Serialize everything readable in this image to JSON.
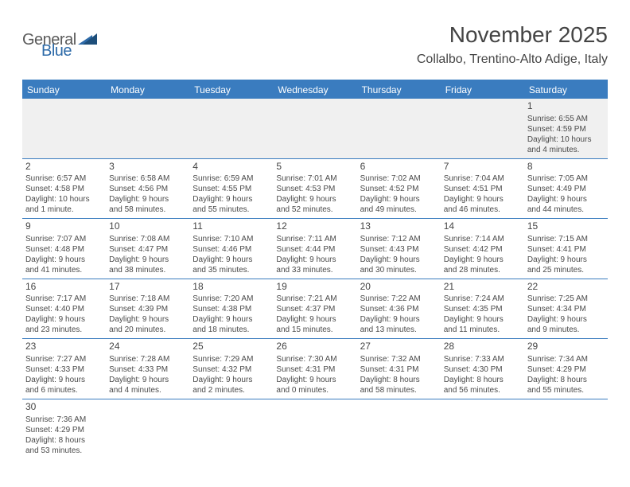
{
  "logo": {
    "general": "General",
    "blue": "Blue"
  },
  "title": "November 2025",
  "location": "Collalbo, Trentino-Alto Adige, Italy",
  "header_bg": "#3a7cbf",
  "weekdays": [
    "Sunday",
    "Monday",
    "Tuesday",
    "Wednesday",
    "Thursday",
    "Friday",
    "Saturday"
  ],
  "weeks": [
    [
      null,
      null,
      null,
      null,
      null,
      null,
      {
        "n": "1",
        "sr": "Sunrise: 6:55 AM",
        "ss": "Sunset: 4:59 PM",
        "d1": "Daylight: 10 hours",
        "d2": "and 4 minutes."
      }
    ],
    [
      {
        "n": "2",
        "sr": "Sunrise: 6:57 AM",
        "ss": "Sunset: 4:58 PM",
        "d1": "Daylight: 10 hours",
        "d2": "and 1 minute."
      },
      {
        "n": "3",
        "sr": "Sunrise: 6:58 AM",
        "ss": "Sunset: 4:56 PM",
        "d1": "Daylight: 9 hours",
        "d2": "and 58 minutes."
      },
      {
        "n": "4",
        "sr": "Sunrise: 6:59 AM",
        "ss": "Sunset: 4:55 PM",
        "d1": "Daylight: 9 hours",
        "d2": "and 55 minutes."
      },
      {
        "n": "5",
        "sr": "Sunrise: 7:01 AM",
        "ss": "Sunset: 4:53 PM",
        "d1": "Daylight: 9 hours",
        "d2": "and 52 minutes."
      },
      {
        "n": "6",
        "sr": "Sunrise: 7:02 AM",
        "ss": "Sunset: 4:52 PM",
        "d1": "Daylight: 9 hours",
        "d2": "and 49 minutes."
      },
      {
        "n": "7",
        "sr": "Sunrise: 7:04 AM",
        "ss": "Sunset: 4:51 PM",
        "d1": "Daylight: 9 hours",
        "d2": "and 46 minutes."
      },
      {
        "n": "8",
        "sr": "Sunrise: 7:05 AM",
        "ss": "Sunset: 4:49 PM",
        "d1": "Daylight: 9 hours",
        "d2": "and 44 minutes."
      }
    ],
    [
      {
        "n": "9",
        "sr": "Sunrise: 7:07 AM",
        "ss": "Sunset: 4:48 PM",
        "d1": "Daylight: 9 hours",
        "d2": "and 41 minutes."
      },
      {
        "n": "10",
        "sr": "Sunrise: 7:08 AM",
        "ss": "Sunset: 4:47 PM",
        "d1": "Daylight: 9 hours",
        "d2": "and 38 minutes."
      },
      {
        "n": "11",
        "sr": "Sunrise: 7:10 AM",
        "ss": "Sunset: 4:46 PM",
        "d1": "Daylight: 9 hours",
        "d2": "and 35 minutes."
      },
      {
        "n": "12",
        "sr": "Sunrise: 7:11 AM",
        "ss": "Sunset: 4:44 PM",
        "d1": "Daylight: 9 hours",
        "d2": "and 33 minutes."
      },
      {
        "n": "13",
        "sr": "Sunrise: 7:12 AM",
        "ss": "Sunset: 4:43 PM",
        "d1": "Daylight: 9 hours",
        "d2": "and 30 minutes."
      },
      {
        "n": "14",
        "sr": "Sunrise: 7:14 AM",
        "ss": "Sunset: 4:42 PM",
        "d1": "Daylight: 9 hours",
        "d2": "and 28 minutes."
      },
      {
        "n": "15",
        "sr": "Sunrise: 7:15 AM",
        "ss": "Sunset: 4:41 PM",
        "d1": "Daylight: 9 hours",
        "d2": "and 25 minutes."
      }
    ],
    [
      {
        "n": "16",
        "sr": "Sunrise: 7:17 AM",
        "ss": "Sunset: 4:40 PM",
        "d1": "Daylight: 9 hours",
        "d2": "and 23 minutes."
      },
      {
        "n": "17",
        "sr": "Sunrise: 7:18 AM",
        "ss": "Sunset: 4:39 PM",
        "d1": "Daylight: 9 hours",
        "d2": "and 20 minutes."
      },
      {
        "n": "18",
        "sr": "Sunrise: 7:20 AM",
        "ss": "Sunset: 4:38 PM",
        "d1": "Daylight: 9 hours",
        "d2": "and 18 minutes."
      },
      {
        "n": "19",
        "sr": "Sunrise: 7:21 AM",
        "ss": "Sunset: 4:37 PM",
        "d1": "Daylight: 9 hours",
        "d2": "and 15 minutes."
      },
      {
        "n": "20",
        "sr": "Sunrise: 7:22 AM",
        "ss": "Sunset: 4:36 PM",
        "d1": "Daylight: 9 hours",
        "d2": "and 13 minutes."
      },
      {
        "n": "21",
        "sr": "Sunrise: 7:24 AM",
        "ss": "Sunset: 4:35 PM",
        "d1": "Daylight: 9 hours",
        "d2": "and 11 minutes."
      },
      {
        "n": "22",
        "sr": "Sunrise: 7:25 AM",
        "ss": "Sunset: 4:34 PM",
        "d1": "Daylight: 9 hours",
        "d2": "and 9 minutes."
      }
    ],
    [
      {
        "n": "23",
        "sr": "Sunrise: 7:27 AM",
        "ss": "Sunset: 4:33 PM",
        "d1": "Daylight: 9 hours",
        "d2": "and 6 minutes."
      },
      {
        "n": "24",
        "sr": "Sunrise: 7:28 AM",
        "ss": "Sunset: 4:33 PM",
        "d1": "Daylight: 9 hours",
        "d2": "and 4 minutes."
      },
      {
        "n": "25",
        "sr": "Sunrise: 7:29 AM",
        "ss": "Sunset: 4:32 PM",
        "d1": "Daylight: 9 hours",
        "d2": "and 2 minutes."
      },
      {
        "n": "26",
        "sr": "Sunrise: 7:30 AM",
        "ss": "Sunset: 4:31 PM",
        "d1": "Daylight: 9 hours",
        "d2": "and 0 minutes."
      },
      {
        "n": "27",
        "sr": "Sunrise: 7:32 AM",
        "ss": "Sunset: 4:31 PM",
        "d1": "Daylight: 8 hours",
        "d2": "and 58 minutes."
      },
      {
        "n": "28",
        "sr": "Sunrise: 7:33 AM",
        "ss": "Sunset: 4:30 PM",
        "d1": "Daylight: 8 hours",
        "d2": "and 56 minutes."
      },
      {
        "n": "29",
        "sr": "Sunrise: 7:34 AM",
        "ss": "Sunset: 4:29 PM",
        "d1": "Daylight: 8 hours",
        "d2": "and 55 minutes."
      }
    ],
    [
      {
        "n": "30",
        "sr": "Sunrise: 7:36 AM",
        "ss": "Sunset: 4:29 PM",
        "d1": "Daylight: 8 hours",
        "d2": "and 53 minutes."
      },
      null,
      null,
      null,
      null,
      null,
      null
    ]
  ]
}
